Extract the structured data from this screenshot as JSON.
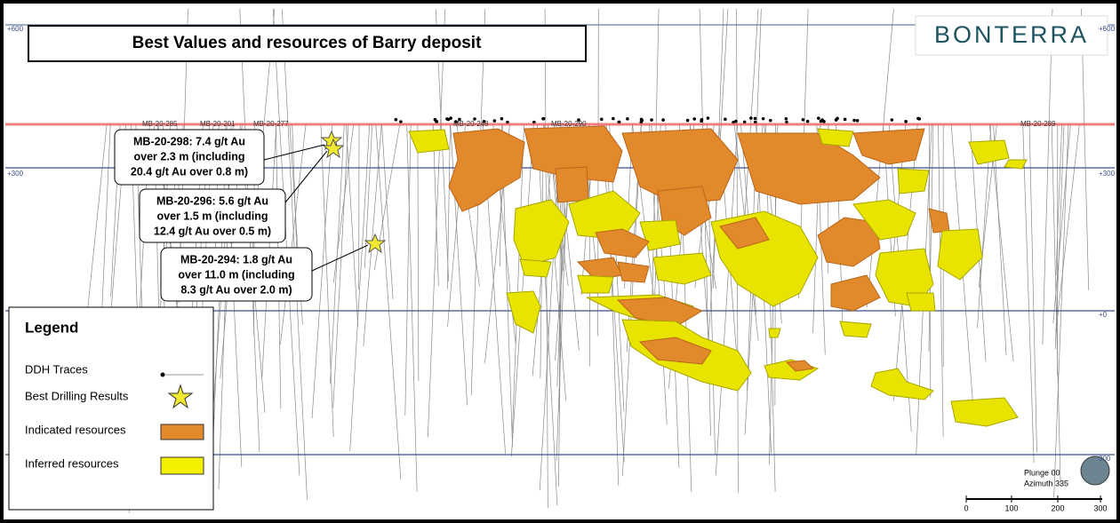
{
  "title": "Best Values and resources of Barry deposit",
  "logo": "BONTERRA",
  "left_elevation_labels": [
    "+600",
    "+300"
  ],
  "right_elevation_labels": [
    "+600",
    "+300",
    "+0",
    "300"
  ],
  "drill_hole_labels": [
    "MB-20-285",
    "MB-20-201",
    "MB-20-277",
    "MB-20-248",
    "MB-20-290",
    "MB-20-289"
  ],
  "callouts": [
    {
      "lines": [
        "MB-20-298: 7.4 g/t Au",
        "over 2.3 m (including",
        "20.4 g/t Au over 0.8 m)"
      ]
    },
    {
      "lines": [
        "MB-20-296: 5.6 g/t Au",
        "over 1.5 m (including",
        "12.4 g/t Au over 0.5 m)"
      ]
    },
    {
      "lines": [
        "MB-20-294: 1.8 g/t Au",
        "over 11.0 m (including",
        "8.3 g/t Au over 2.0 m)"
      ]
    }
  ],
  "legend": {
    "title": "Legend",
    "items": [
      "DDH Traces",
      "Best Drilling Results",
      "Indicated resources",
      "Inferred resources"
    ]
  },
  "orientation": [
    "Plunge 00",
    "Azimuth 335"
  ],
  "scale_labels": [
    "0",
    "100",
    "200",
    "300"
  ]
}
